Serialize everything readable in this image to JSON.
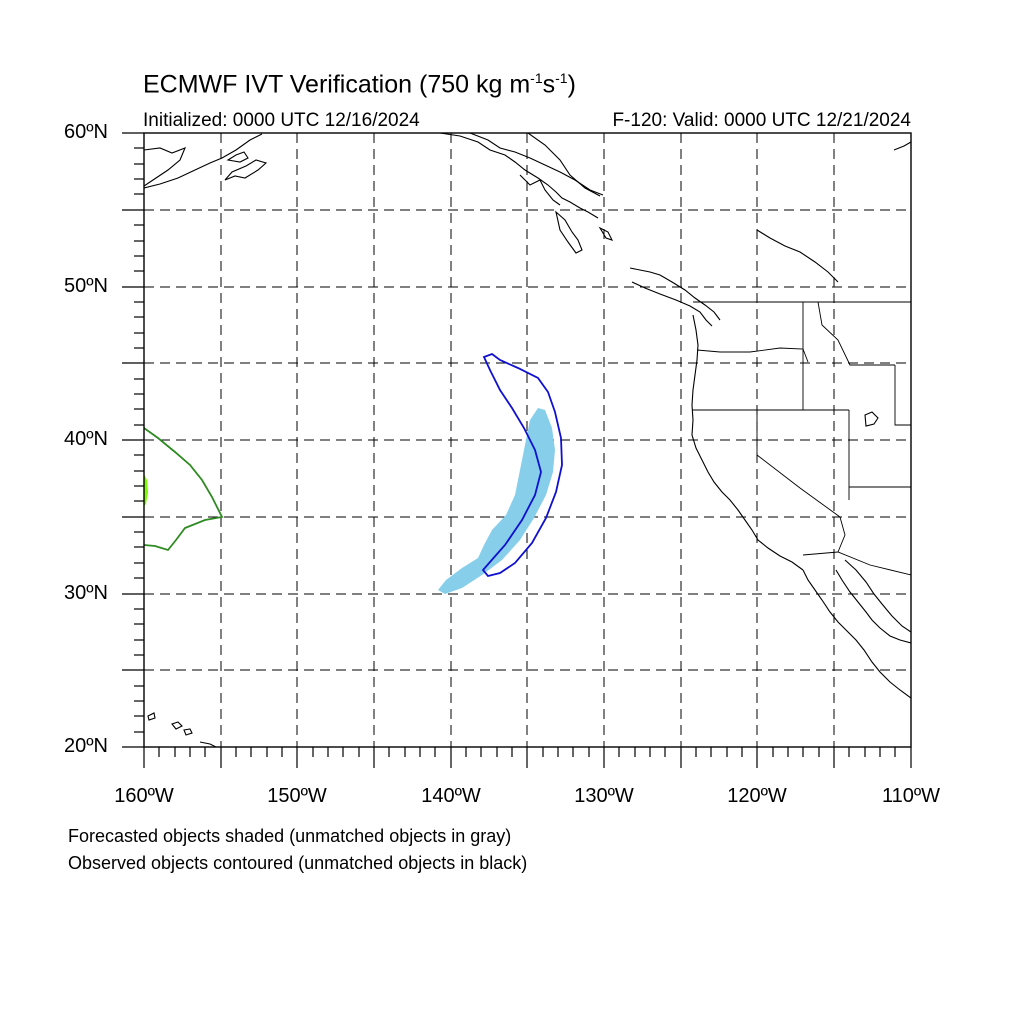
{
  "title": {
    "main": "ECMWF IVT Verification (750 kg m",
    "exp1": "-1",
    "mid": "s",
    "exp2": "-1",
    "end": ")"
  },
  "initialized": "Initialized: 0000 UTC 12/16/2024",
  "valid": "F-120: Valid: 0000 UTC 12/21/2024",
  "axes": {
    "y_labels": [
      "60ºN",
      "50ºN",
      "40ºN",
      "30ºN",
      "20ºN"
    ],
    "x_labels": [
      "160ºW",
      "150ºW",
      "140ºW",
      "130ºW",
      "120ºW",
      "110ºW"
    ],
    "lat_range": [
      20,
      60
    ],
    "lon_range": [
      -160,
      -110
    ],
    "grid": "dashed every 5 degrees"
  },
  "colors": {
    "forecast_fill": "#87ceeb",
    "observed_matched": "#1010d0",
    "observed_other": "#2e8b22",
    "forecast_other": "#7cfc00",
    "coast": "#000000"
  },
  "notes": {
    "forecast": "Forecasted objects shaded (unmatched objects in gray)",
    "observed": "Observed objects contoured (unmatched objects in black)"
  }
}
